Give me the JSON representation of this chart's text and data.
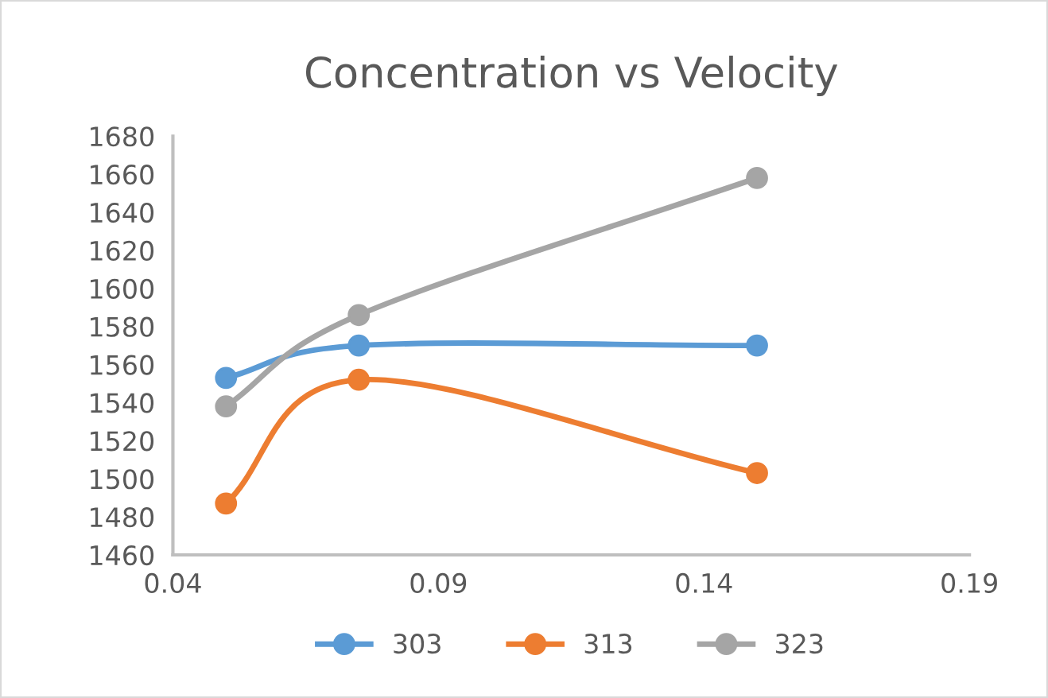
{
  "chart_data": {
    "type": "line",
    "title": "Concentration vs Velocity",
    "x": [
      0.05,
      0.075,
      0.15
    ],
    "series": [
      {
        "name": "303",
        "color": "#5b9bd5",
        "values": [
          1553,
          1570,
          1570
        ]
      },
      {
        "name": "313",
        "color": "#ed7d31",
        "values": [
          1487,
          1552,
          1503
        ]
      },
      {
        "name": "323",
        "color": "#a5a5a5",
        "values": [
          1538,
          1586,
          1658
        ]
      }
    ],
    "xlim": [
      0.04,
      0.19
    ],
    "xticks": [
      {
        "value": 0.04,
        "label": "0.04"
      },
      {
        "value": 0.09,
        "label": "0.09"
      },
      {
        "value": 0.14,
        "label": "0.14"
      },
      {
        "value": 0.19,
        "label": "0.19"
      }
    ],
    "ylim": [
      1460,
      1680
    ],
    "yticks": [
      1460,
      1480,
      1500,
      1520,
      1540,
      1560,
      1580,
      1600,
      1620,
      1640,
      1660,
      1680
    ],
    "grid": false,
    "legend": "bottom",
    "marker": "circle",
    "line_style": "solid"
  }
}
